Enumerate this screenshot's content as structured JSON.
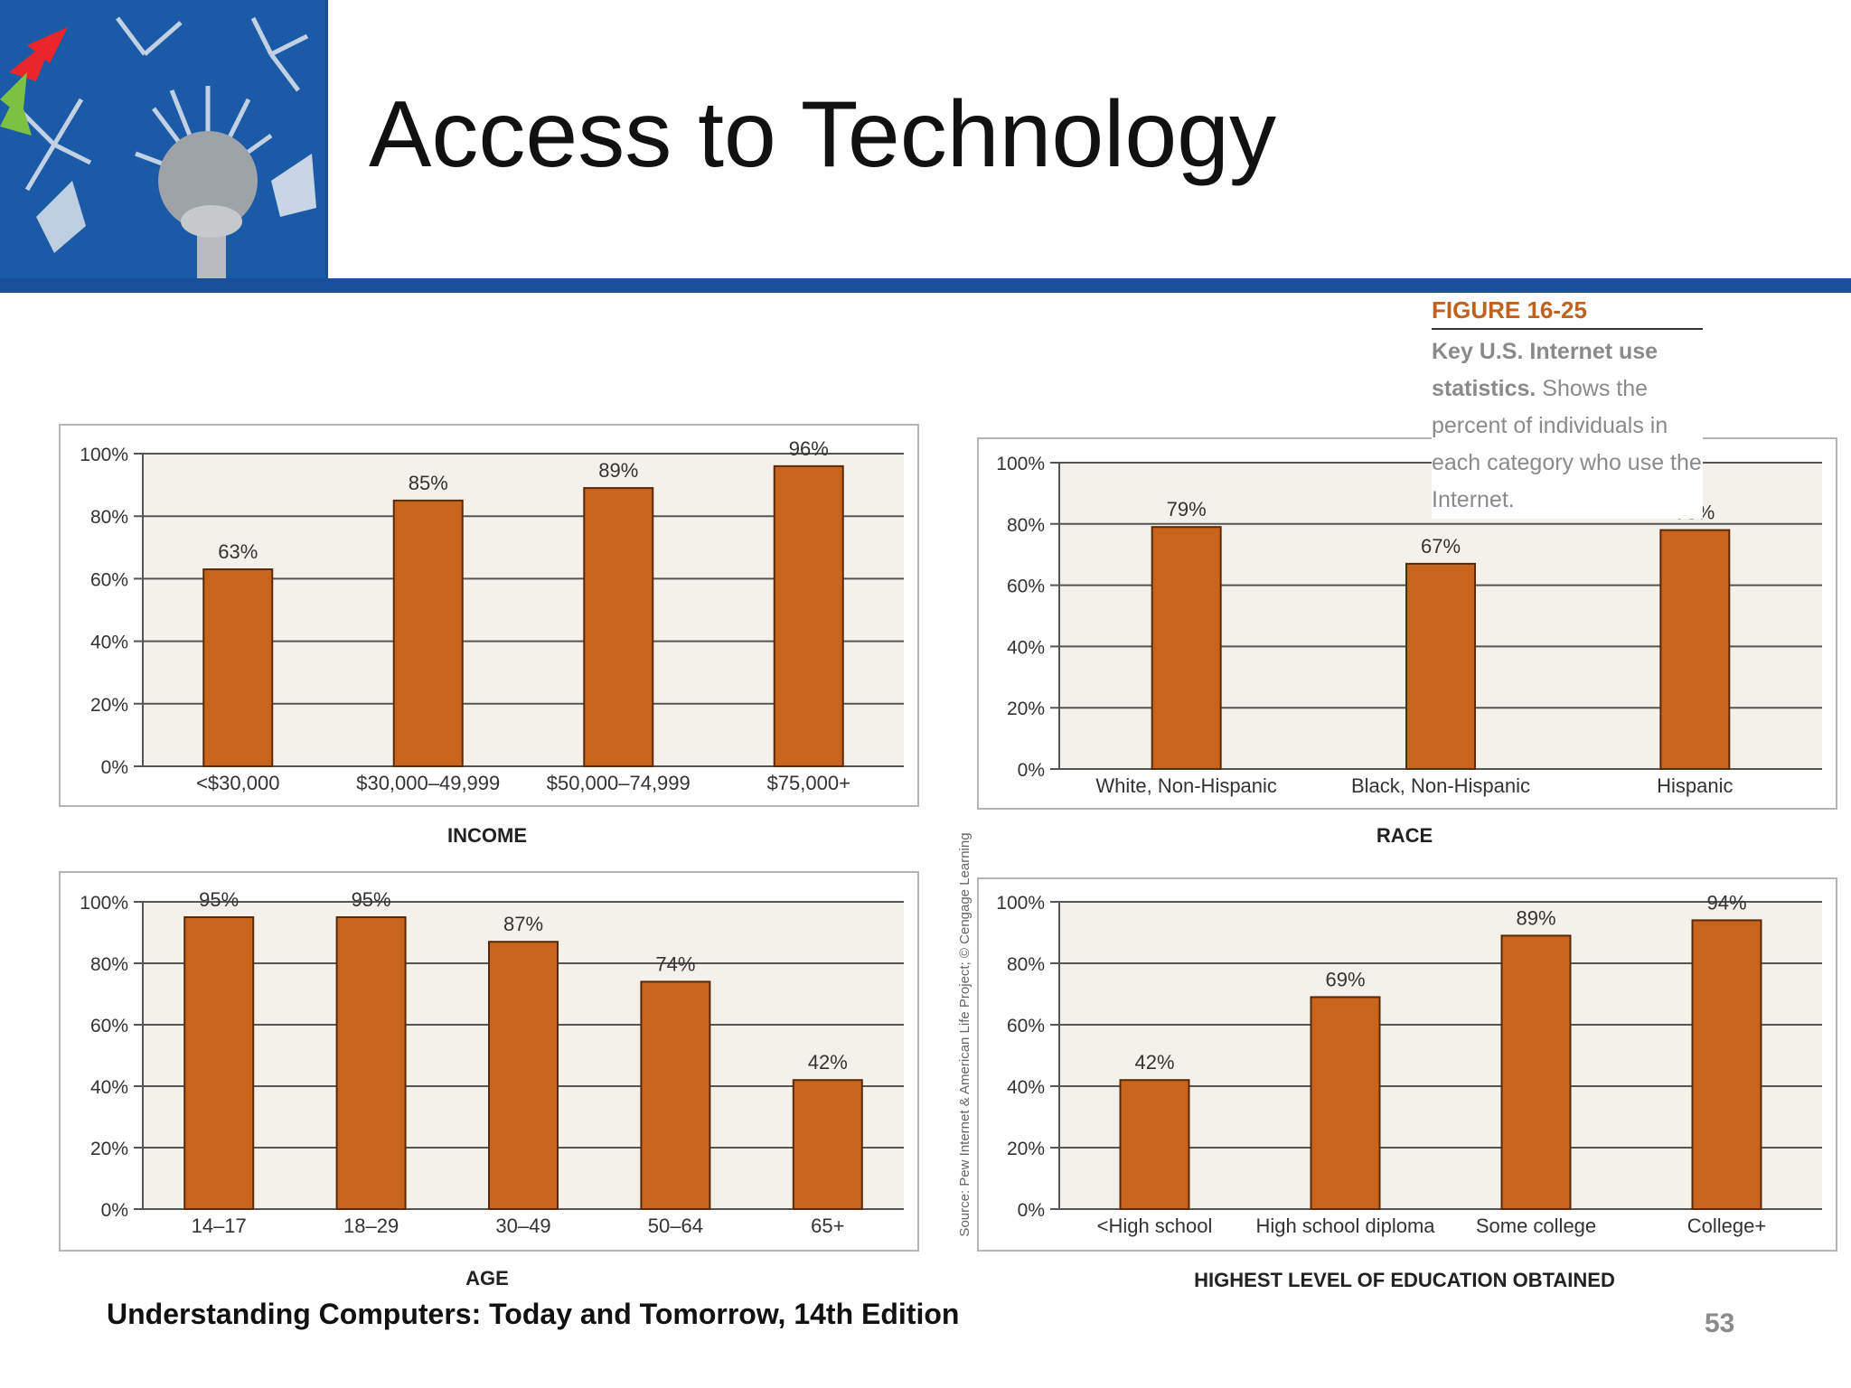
{
  "slide": {
    "title": "Access to Technology",
    "footer": "Understanding Computers: Today and Tomorrow, 14th Edition",
    "page_number": "53"
  },
  "caption": {
    "figure_label": "FIGURE 16-25",
    "bold_text": "Key U.S. Internet use statistics.",
    "body_text": "Shows the percent of individuals in each category who use the Internet."
  },
  "source_note": "Source: Pew Internet & American Life Project; © Cengage Learning",
  "colors": {
    "bar": "#c8641b",
    "plot_bg": "#f3f1ea",
    "accent_blue": "#1a4f9c"
  },
  "chart_data": [
    {
      "type": "bar",
      "xlabel": "INCOME",
      "yticks": [
        "0%",
        "20%",
        "40%",
        "60%",
        "80%",
        "100%"
      ],
      "ylim": [
        0,
        100
      ],
      "categories": [
        "<$30,000",
        "$30,000–49,999",
        "$50,000–74,999",
        "$75,000+"
      ],
      "values": [
        63,
        85,
        89,
        96
      ],
      "data_labels": [
        "63%",
        "85%",
        "89%",
        "96%"
      ]
    },
    {
      "type": "bar",
      "xlabel": "RACE",
      "yticks": [
        "0%",
        "20%",
        "40%",
        "60%",
        "80%",
        "100%"
      ],
      "ylim": [
        0,
        100
      ],
      "categories": [
        "White, Non-Hispanic",
        "Black, Non-Hispanic",
        "Hispanic"
      ],
      "values": [
        79,
        67,
        78
      ],
      "data_labels": [
        "79%",
        "67%",
        "78%"
      ]
    },
    {
      "type": "bar",
      "xlabel": "AGE",
      "yticks": [
        "0%",
        "20%",
        "40%",
        "60%",
        "80%",
        "100%"
      ],
      "ylim": [
        0,
        100
      ],
      "categories": [
        "14–17",
        "18–29",
        "30–49",
        "50–64",
        "65+"
      ],
      "values": [
        95,
        95,
        87,
        74,
        42
      ],
      "data_labels": [
        "95%",
        "95%",
        "87%",
        "74%",
        "42%"
      ]
    },
    {
      "type": "bar",
      "xlabel": "HIGHEST LEVEL OF EDUCATION OBTAINED",
      "yticks": [
        "0%",
        "20%",
        "40%",
        "60%",
        "80%",
        "100%"
      ],
      "ylim": [
        0,
        100
      ],
      "categories": [
        "<High school",
        "High school diploma",
        "Some college",
        "College+"
      ],
      "values": [
        42,
        69,
        89,
        94
      ],
      "data_labels": [
        "42%",
        "69%",
        "89%",
        "94%"
      ]
    }
  ]
}
